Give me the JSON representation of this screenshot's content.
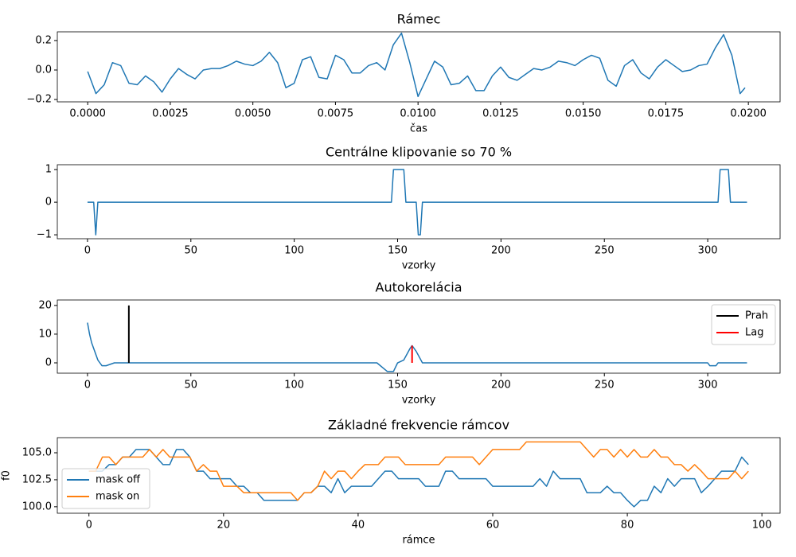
{
  "chart_data": [
    {
      "type": "line",
      "title": "Rámec",
      "x_label": "čas",
      "x": [
        0,
        0.00025,
        0.0005,
        0.00075,
        0.001,
        0.00125,
        0.0015,
        0.00175,
        0.002,
        0.00225,
        0.0025,
        0.00275,
        0.003,
        0.00325,
        0.0035,
        0.00375,
        0.004,
        0.00425,
        0.0045,
        0.00475,
        0.005,
        0.00525,
        0.0055,
        0.00575,
        0.006,
        0.00625,
        0.0065,
        0.00675,
        0.007,
        0.00725,
        0.0075,
        0.00775,
        0.008,
        0.00825,
        0.0085,
        0.00875,
        0.009,
        0.00925,
        0.0095,
        0.00975,
        0.01,
        0.01025,
        0.0105,
        0.01075,
        0.011,
        0.01125,
        0.0115,
        0.01175,
        0.012,
        0.01225,
        0.0125,
        0.01275,
        0.013,
        0.01325,
        0.0135,
        0.01375,
        0.014,
        0.01425,
        0.0145,
        0.01475,
        0.015,
        0.01525,
        0.0155,
        0.01575,
        0.016,
        0.01625,
        0.0165,
        0.01675,
        0.017,
        0.01725,
        0.0175,
        0.01775,
        0.018,
        0.01825,
        0.0185,
        0.01875,
        0.019,
        0.01925,
        0.0195,
        0.01975,
        0.0199
      ],
      "series": [
        {
          "color": "#1f77b4",
          "values": [
            -0.01,
            -0.16,
            -0.1,
            0.05,
            0.03,
            -0.09,
            -0.1,
            -0.04,
            -0.08,
            -0.15,
            -0.06,
            0.01,
            -0.03,
            -0.06,
            0.0,
            0.01,
            0.01,
            0.03,
            0.06,
            0.04,
            0.03,
            0.06,
            0.12,
            0.05,
            -0.12,
            -0.09,
            0.07,
            0.09,
            -0.05,
            -0.06,
            0.1,
            0.07,
            -0.02,
            -0.02,
            0.03,
            0.05,
            0.0,
            0.17,
            0.25,
            0.05,
            -0.18,
            -0.06,
            0.06,
            0.02,
            -0.1,
            -0.09,
            -0.04,
            -0.14,
            -0.14,
            -0.04,
            0.02,
            -0.05,
            -0.07,
            -0.03,
            0.01,
            0.0,
            0.02,
            0.06,
            0.05,
            0.03,
            0.07,
            0.1,
            0.08,
            -0.07,
            -0.11,
            0.03,
            0.07,
            -0.02,
            -0.06,
            0.02,
            0.07,
            0.03,
            -0.01,
            0.0,
            0.03,
            0.04,
            0.15,
            0.24,
            0.1,
            -0.16,
            -0.12
          ]
        }
      ],
      "xlim": [
        -0.00092,
        0.02096
      ],
      "ylim": [
        -0.216,
        0.259
      ],
      "xticks": [
        {
          "value": 0,
          "label": "0.0000"
        },
        {
          "value": 0.0025,
          "label": "0.0025"
        },
        {
          "value": 0.005,
          "label": "0.0050"
        },
        {
          "value": 0.0075,
          "label": "0.0075"
        },
        {
          "value": 0.01,
          "label": "0.0100"
        },
        {
          "value": 0.0125,
          "label": "0.0125"
        },
        {
          "value": 0.015,
          "label": "0.0150"
        },
        {
          "value": 0.0175,
          "label": "0.0175"
        },
        {
          "value": 0.02,
          "label": "0.0200"
        }
      ],
      "yticks": [
        {
          "value": -0.2,
          "label": "−0.2"
        },
        {
          "value": 0,
          "label": "0.0"
        },
        0.2
      ]
    },
    {
      "type": "line",
      "title": "Centrálne klipovanie so 70 %",
      "x_label": "vzorky",
      "x": [
        0,
        3,
        4,
        5,
        147,
        148,
        153,
        154,
        159,
        160,
        161,
        162,
        305,
        306,
        310,
        311,
        319
      ],
      "series": [
        {
          "color": "#1f77b4",
          "values": [
            0,
            0,
            -1,
            0,
            0,
            1,
            1,
            0,
            0,
            -1,
            -1,
            0,
            0,
            1,
            1,
            0,
            0
          ]
        }
      ],
      "xlim": [
        -14.6,
        335
      ],
      "ylim": [
        -1.12,
        1.15
      ],
      "xticks": [
        0,
        50,
        100,
        150,
        200,
        250,
        300
      ],
      "yticks": [
        {
          "value": -1,
          "label": "−1"
        },
        0,
        1
      ]
    },
    {
      "type": "line",
      "title": "Autokorelácia",
      "x_label": "vzorky",
      "x": [
        0,
        1,
        2,
        4,
        5,
        7,
        9,
        13,
        140,
        145,
        148,
        150,
        153,
        156,
        157,
        159,
        162,
        300,
        301,
        304,
        305,
        319
      ],
      "series": [
        {
          "color": "#1f77b4",
          "values": [
            14,
            10,
            7,
            3,
            1,
            -1,
            -1,
            0,
            0,
            -3,
            -3,
            0,
            1,
            5,
            6,
            4,
            0,
            0,
            -1,
            -1,
            0,
            0
          ]
        }
      ],
      "vlines": [
        {
          "name": "Prah",
          "color": "#000000",
          "x": 20,
          "ymin": 0,
          "ymax": 20
        },
        {
          "name": "Lag",
          "color": "#ff0000",
          "x": 157,
          "ymin": 0,
          "ymax": 6
        }
      ],
      "legend": "upper right",
      "xlim": [
        -14.6,
        335
      ],
      "ylim": [
        -3.6,
        21.9
      ],
      "xticks": [
        0,
        50,
        100,
        150,
        200,
        250,
        300
      ],
      "yticks": [
        0,
        10,
        20
      ]
    },
    {
      "type": "line",
      "title": "Základné frekvencie rámcov",
      "x_label": "rámce",
      "y_label": "f0",
      "x": [
        0,
        1,
        2,
        3,
        4,
        5,
        6,
        7,
        8,
        9,
        10,
        11,
        12,
        13,
        14,
        15,
        16,
        17,
        18,
        19,
        20,
        21,
        22,
        23,
        24,
        25,
        26,
        27,
        28,
        29,
        30,
        31,
        32,
        33,
        34,
        35,
        36,
        37,
        38,
        39,
        40,
        41,
        42,
        43,
        44,
        45,
        46,
        47,
        48,
        49,
        50,
        51,
        52,
        53,
        54,
        55,
        56,
        57,
        58,
        59,
        60,
        61,
        62,
        63,
        64,
        65,
        66,
        67,
        68,
        69,
        70,
        71,
        72,
        73,
        74,
        75,
        76,
        77,
        78,
        79,
        80,
        81,
        82,
        83,
        84,
        85,
        86,
        87,
        88,
        89,
        90,
        91,
        92,
        93,
        94,
        95,
        96,
        97,
        98
      ],
      "series": [
        {
          "name": "mask off",
          "color": "#1f77b4",
          "values": [
            103.3,
            103.3,
            103.3,
            103.9,
            103.9,
            104.6,
            104.6,
            105.3,
            105.3,
            105.3,
            104.6,
            103.9,
            103.9,
            105.3,
            105.3,
            104.6,
            103.3,
            103.3,
            102.6,
            102.6,
            102.6,
            102.6,
            101.9,
            101.9,
            101.3,
            101.3,
            100.6,
            100.6,
            100.6,
            100.6,
            100.6,
            100.6,
            101.3,
            101.3,
            101.9,
            101.9,
            101.3,
            102.6,
            101.3,
            101.9,
            101.9,
            101.9,
            101.9,
            102.6,
            103.3,
            103.3,
            102.6,
            102.6,
            102.6,
            102.6,
            101.9,
            101.9,
            101.9,
            103.3,
            103.3,
            102.6,
            102.6,
            102.6,
            102.6,
            102.6,
            101.9,
            101.9,
            101.9,
            101.9,
            101.9,
            101.9,
            101.9,
            102.6,
            101.9,
            103.3,
            102.6,
            102.6,
            102.6,
            102.6,
            101.3,
            101.3,
            101.3,
            101.9,
            101.3,
            101.3,
            100.6,
            100.0,
            100.6,
            100.6,
            101.9,
            101.3,
            102.6,
            101.9,
            102.6,
            102.6,
            102.6,
            101.3,
            101.9,
            102.6,
            103.3,
            103.3,
            103.3,
            104.6,
            103.9
          ]
        },
        {
          "name": "mask on",
          "color": "#ff7f0e",
          "values": [
            103.3,
            103.3,
            104.6,
            104.6,
            103.9,
            104.6,
            104.6,
            104.6,
            104.6,
            105.3,
            104.6,
            105.3,
            104.6,
            104.6,
            104.6,
            104.6,
            103.3,
            103.9,
            103.3,
            103.3,
            101.9,
            101.9,
            101.9,
            101.3,
            101.3,
            101.3,
            101.3,
            101.3,
            101.3,
            101.3,
            101.3,
            100.6,
            101.3,
            101.3,
            101.9,
            103.3,
            102.6,
            103.3,
            103.3,
            102.6,
            103.3,
            103.9,
            103.9,
            103.9,
            104.6,
            104.6,
            104.6,
            103.9,
            103.9,
            103.9,
            103.9,
            103.9,
            103.9,
            104.6,
            104.6,
            104.6,
            104.6,
            104.6,
            103.9,
            104.6,
            105.3,
            105.3,
            105.3,
            105.3,
            105.3,
            106.0,
            106.0,
            106.0,
            106.0,
            106.0,
            106.0,
            106.0,
            106.0,
            106.0,
            105.3,
            104.6,
            105.3,
            105.3,
            104.6,
            105.3,
            104.6,
            105.3,
            104.6,
            104.6,
            105.3,
            104.6,
            104.6,
            103.9,
            103.9,
            103.3,
            103.9,
            103.3,
            102.6,
            102.6,
            102.6,
            102.6,
            103.3,
            102.6,
            103.3
          ]
        }
      ],
      "legend": "lower left",
      "xlim": [
        -4.7,
        102.7
      ],
      "ylim": [
        99.4,
        106.4
      ],
      "xticks": [
        0,
        20,
        40,
        60,
        80,
        100
      ],
      "yticks": [
        {
          "value": 100,
          "label": "100.0"
        },
        102.5,
        {
          "value": 105,
          "label": "105.0"
        }
      ]
    }
  ]
}
